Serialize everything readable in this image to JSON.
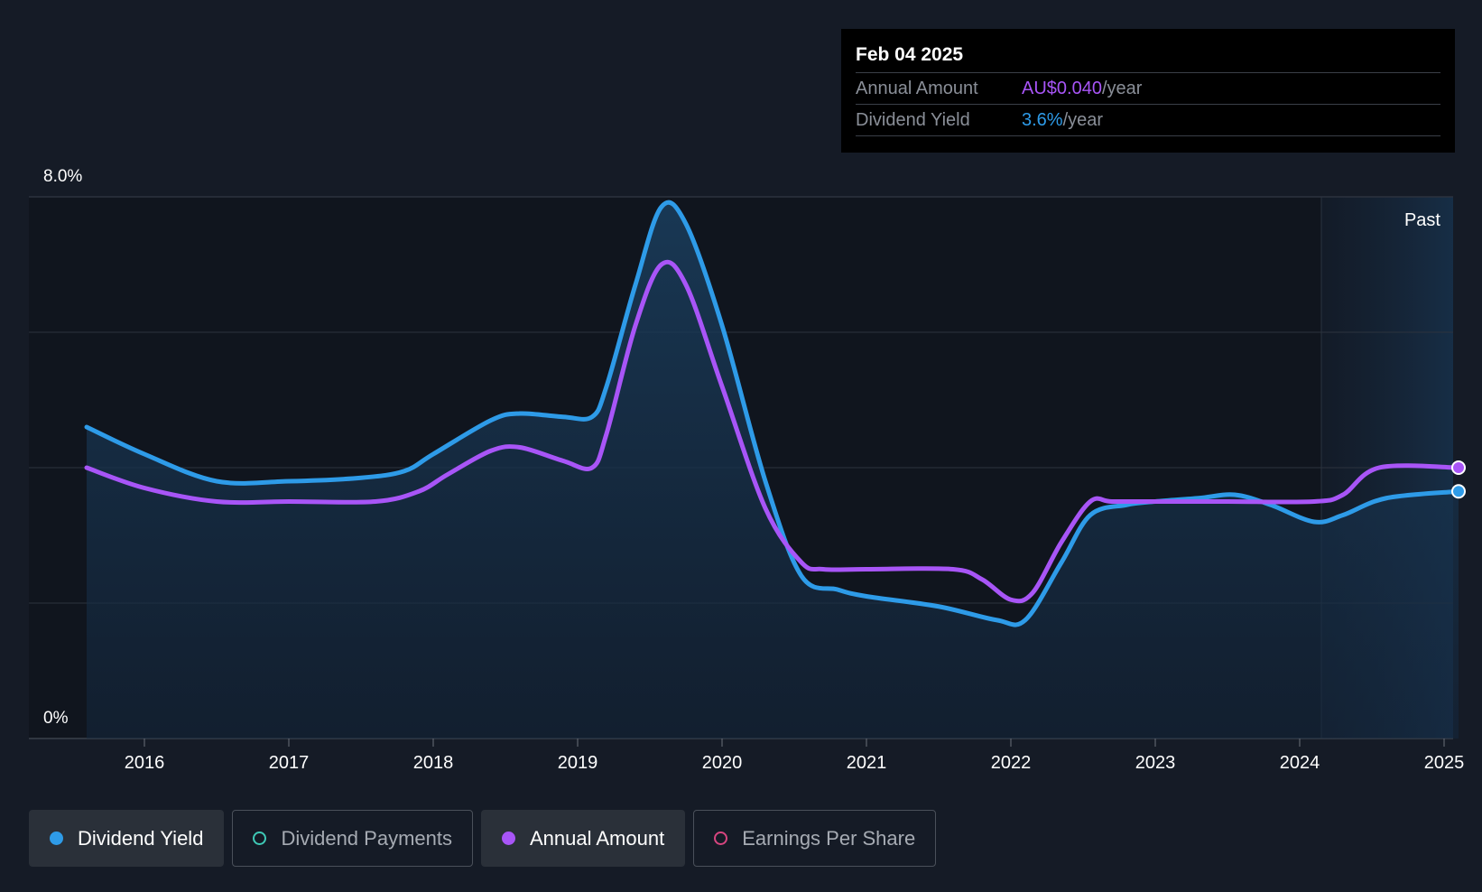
{
  "tooltip": {
    "date": "Feb 04 2025",
    "rows": [
      {
        "label": "Annual Amount",
        "value": "AU$0.040",
        "unit": "/year"
      },
      {
        "label": "Dividend Yield",
        "value": "3.6%",
        "unit": "/year"
      }
    ]
  },
  "legend": [
    {
      "label": "Dividend Yield",
      "color": "#2e9be8",
      "filled": true,
      "active": true
    },
    {
      "label": "Dividend Payments",
      "color": "#3ec9b6",
      "filled": false,
      "active": false
    },
    {
      "label": "Annual Amount",
      "color": "#a855f7",
      "filled": true,
      "active": true
    },
    {
      "label": "Earnings Per Share",
      "color": "#d6457f",
      "filled": false,
      "active": false
    }
  ],
  "chart_data": {
    "type": "line",
    "ylim": [
      0,
      8.0
    ],
    "y_tick_labels": [
      "0%",
      "8.0%"
    ],
    "x_tick_labels": [
      "2016",
      "2017",
      "2018",
      "2019",
      "2020",
      "2021",
      "2022",
      "2023",
      "2024",
      "2025"
    ],
    "x_range": [
      2015.4,
      2025.1
    ],
    "past_label": "Past",
    "past_start": 2024.15,
    "grid": true,
    "series": [
      {
        "name": "Dividend Yield",
        "color": "#2e9be8",
        "area": true,
        "x": [
          2015.6,
          2016.0,
          2016.5,
          2017.0,
          2017.5,
          2017.8,
          2018.0,
          2018.4,
          2018.6,
          2018.9,
          2019.1,
          2019.2,
          2019.4,
          2019.58,
          2019.75,
          2020.0,
          2020.3,
          2020.55,
          2020.8,
          2021.0,
          2021.5,
          2021.9,
          2022.1,
          2022.35,
          2022.55,
          2022.8,
          2023.0,
          2023.3,
          2023.55,
          2023.8,
          2024.1,
          2024.3,
          2024.6,
          2025.1
        ],
        "y": [
          4.6,
          4.2,
          3.8,
          3.8,
          3.85,
          3.95,
          4.2,
          4.7,
          4.8,
          4.75,
          4.75,
          5.2,
          6.7,
          7.85,
          7.6,
          6.1,
          3.8,
          2.4,
          2.2,
          2.1,
          1.95,
          1.75,
          1.75,
          2.6,
          3.3,
          3.45,
          3.5,
          3.55,
          3.6,
          3.45,
          3.2,
          3.3,
          3.55,
          3.65
        ]
      },
      {
        "name": "Annual Amount",
        "color": "#a855f7",
        "area": false,
        "x": [
          2015.6,
          2016.0,
          2016.5,
          2017.0,
          2017.6,
          2017.9,
          2018.1,
          2018.4,
          2018.6,
          2018.9,
          2019.1,
          2019.2,
          2019.4,
          2019.58,
          2019.75,
          2020.0,
          2020.3,
          2020.55,
          2020.7,
          2021.0,
          2021.6,
          2021.8,
          2022.0,
          2022.15,
          2022.35,
          2022.55,
          2022.7,
          2023.0,
          2023.5,
          2024.1,
          2024.3,
          2024.55,
          2025.1
        ],
        "y": [
          4.0,
          3.7,
          3.5,
          3.5,
          3.5,
          3.65,
          3.9,
          4.25,
          4.3,
          4.1,
          4.0,
          4.5,
          6.1,
          7.0,
          6.7,
          5.2,
          3.4,
          2.6,
          2.5,
          2.5,
          2.5,
          2.35,
          2.05,
          2.15,
          2.9,
          3.5,
          3.5,
          3.5,
          3.5,
          3.5,
          3.6,
          4.0,
          4.0
        ]
      }
    ]
  }
}
